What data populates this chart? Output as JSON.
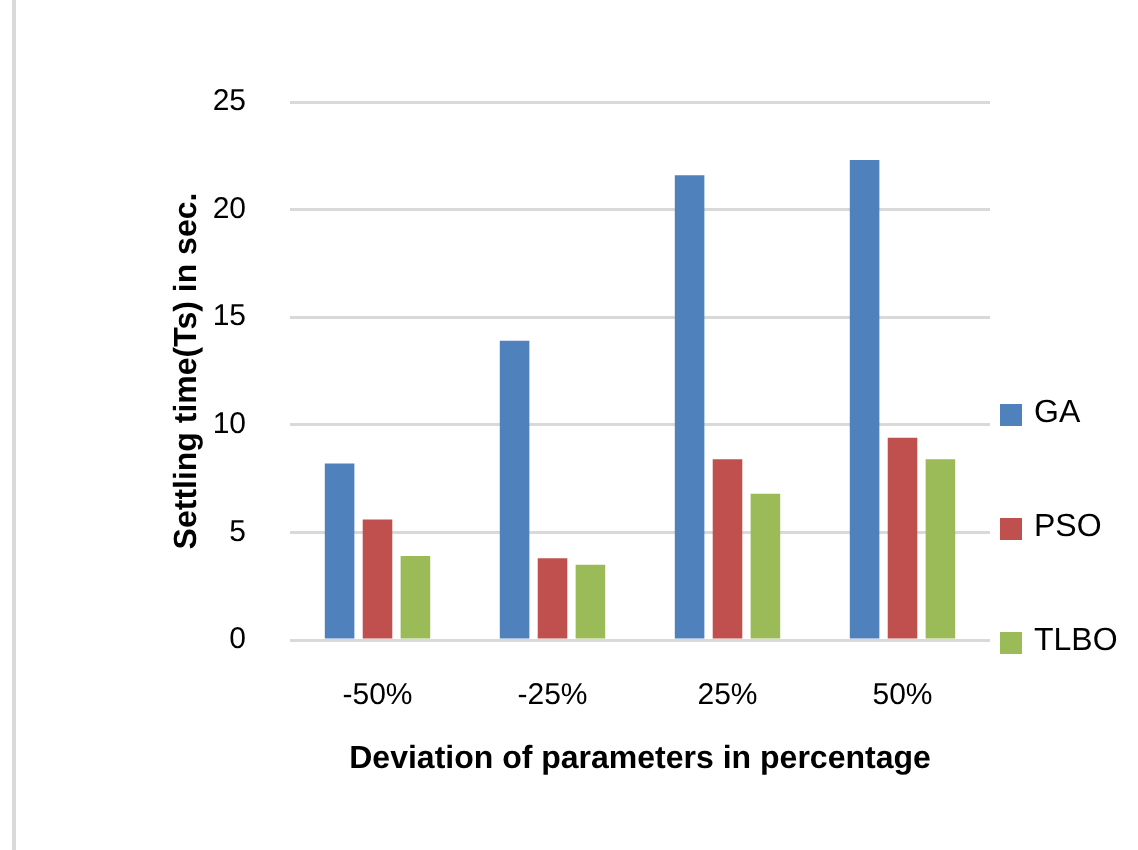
{
  "chart_data": {
    "type": "bar",
    "xlabel": "Deviation of parameters in percentage",
    "ylabel": "Settling time(Ts) in sec.",
    "categories": [
      "-50%",
      "-25%",
      "25%",
      "50%"
    ],
    "series": [
      {
        "name": "GA",
        "color": "#4f81bd",
        "values": [
          8.2,
          13.9,
          21.6,
          22.3
        ]
      },
      {
        "name": "PSO",
        "color": "#c0504d",
        "values": [
          5.6,
          3.8,
          8.4,
          9.4
        ]
      },
      {
        "name": "TLBO",
        "color": "#9bbb59",
        "values": [
          3.9,
          3.5,
          6.8,
          8.4
        ]
      }
    ],
    "ylim": [
      0,
      25
    ],
    "yticks": [
      0,
      5,
      10,
      15,
      20,
      25
    ],
    "grid": "y",
    "legend": "right"
  }
}
